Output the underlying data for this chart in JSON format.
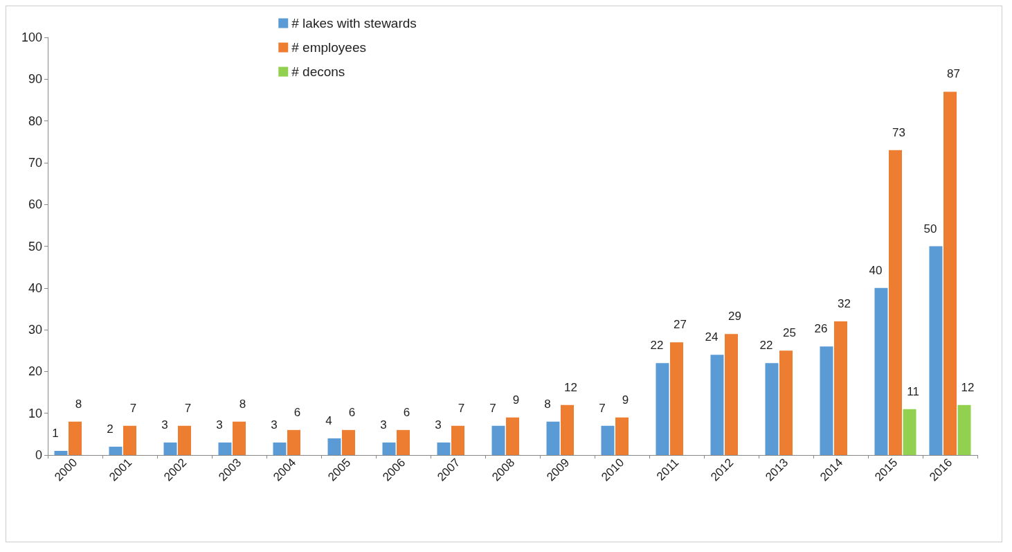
{
  "chart_data": {
    "type": "bar",
    "categories": [
      "2000",
      "2001",
      "2002",
      "2003",
      "2004",
      "2005",
      "2006",
      "2007",
      "2008",
      "2009",
      "2010",
      "2011",
      "2012",
      "2013",
      "2014",
      "2015",
      "2016"
    ],
    "series": [
      {
        "name": "# lakes with stewards",
        "color": "#5b9bd5",
        "values": [
          1,
          2,
          3,
          3,
          3,
          4,
          3,
          3,
          7,
          8,
          7,
          22,
          24,
          22,
          26,
          40,
          50
        ]
      },
      {
        "name": "# employees",
        "color": "#ed7d31",
        "values": [
          8,
          7,
          7,
          8,
          6,
          6,
          6,
          7,
          9,
          12,
          9,
          27,
          29,
          25,
          32,
          73,
          87
        ]
      },
      {
        "name": "# decons",
        "color": "#92d050",
        "values": [
          null,
          null,
          null,
          null,
          null,
          null,
          null,
          null,
          null,
          null,
          null,
          null,
          null,
          null,
          null,
          11,
          12
        ]
      }
    ],
    "ylim": [
      0,
      100
    ],
    "yticks": [
      0,
      10,
      20,
      30,
      40,
      50,
      60,
      70,
      80,
      90,
      100
    ],
    "data_labels": true,
    "grid": false,
    "legend": "top"
  }
}
